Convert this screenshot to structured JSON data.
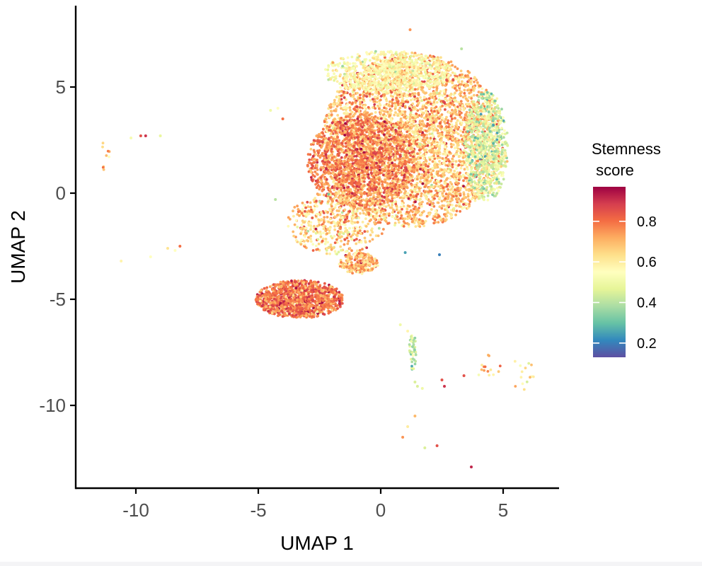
{
  "chart_data": {
    "type": "scatter",
    "title": "",
    "xlabel": "UMAP 1",
    "ylabel": "UMAP 2",
    "xlim": [
      -12.4,
      7.3
    ],
    "ylim": [
      -14,
      8.8
    ],
    "x_ticks": [
      -10,
      -5,
      0,
      5
    ],
    "y_ticks": [
      -10,
      -5,
      0,
      5
    ],
    "grid": false,
    "color_variable": "Stemness score",
    "legend": {
      "title_lines": [
        "Stemness",
        " score"
      ],
      "placement": "right",
      "ticks": [
        0.2,
        0.4,
        0.6,
        0.8
      ],
      "range": [
        0.13,
        0.97
      ],
      "colormap": [
        "#5e4fa2",
        "#3288bd",
        "#66c2a5",
        "#abdda4",
        "#e6f598",
        "#ffffbf",
        "#fee08b",
        "#fdae61",
        "#f46d43",
        "#d53e4f",
        "#9e0142"
      ]
    },
    "clusters": [
      {
        "name": "main-mass",
        "shape": "ellipse",
        "center": [
          1.3,
          2.5
        ],
        "radius": [
          3.7,
          4.1
        ],
        "count": 4200,
        "score_mean": 0.68,
        "score_sd": 0.09
      },
      {
        "name": "main-left-red",
        "shape": "ellipse",
        "center": [
          -0.8,
          1.5
        ],
        "radius": [
          2.2,
          2.2
        ],
        "count": 1400,
        "score_mean": 0.78,
        "score_sd": 0.07
      },
      {
        "name": "main-right-green",
        "shape": "ellipse",
        "center": [
          4.3,
          2.2
        ],
        "radius": [
          0.9,
          2.6
        ],
        "count": 700,
        "score_mean": 0.46,
        "score_sd": 0.08
      },
      {
        "name": "main-top-pale",
        "shape": "ellipse",
        "center": [
          0.3,
          5.7
        ],
        "radius": [
          2.6,
          1.0
        ],
        "count": 700,
        "score_mean": 0.55,
        "score_sd": 0.06
      },
      {
        "name": "main-lower-lobe",
        "shape": "ellipse",
        "center": [
          -1.8,
          -1.4
        ],
        "radius": [
          2.0,
          1.5
        ],
        "count": 500,
        "score_mean": 0.66,
        "score_sd": 0.1
      },
      {
        "name": "bridge",
        "shape": "ellipse",
        "center": [
          -0.9,
          -3.3
        ],
        "radius": [
          0.8,
          0.5
        ],
        "count": 220,
        "score_mean": 0.7,
        "score_sd": 0.08
      },
      {
        "name": "lower-cluster",
        "shape": "ellipse",
        "center": [
          -3.3,
          -5.0
        ],
        "radius": [
          1.8,
          0.9
        ],
        "count": 1200,
        "score_mean": 0.79,
        "score_sd": 0.07
      },
      {
        "name": "stream-green",
        "shape": "ellipse",
        "center": [
          1.3,
          -7.5
        ],
        "radius": [
          0.15,
          0.9
        ],
        "count": 45,
        "score_mean": 0.42,
        "score_sd": 0.06
      },
      {
        "name": "bottom-right-a",
        "shape": "ellipse",
        "center": [
          4.4,
          -8.2
        ],
        "radius": [
          0.5,
          0.6
        ],
        "count": 14,
        "score_mean": 0.67,
        "score_sd": 0.12
      },
      {
        "name": "bottom-right-b",
        "shape": "ellipse",
        "center": [
          5.8,
          -8.5
        ],
        "radius": [
          0.5,
          0.8
        ],
        "count": 14,
        "score_mean": 0.6,
        "score_sd": 0.1
      },
      {
        "name": "far-left",
        "shape": "ellipse",
        "center": [
          -11.2,
          1.8
        ],
        "radius": [
          0.2,
          0.9
        ],
        "count": 9,
        "score_mean": 0.64,
        "score_sd": 0.08
      }
    ],
    "isolated_points": [
      {
        "x": -9.8,
        "y": 2.7,
        "score": 0.85
      },
      {
        "x": -9.6,
        "y": 2.7,
        "score": 0.9
      },
      {
        "x": -10.2,
        "y": 2.6,
        "score": 0.52
      },
      {
        "x": -9.0,
        "y": 2.7,
        "score": 0.48
      },
      {
        "x": -8.7,
        "y": -2.6,
        "score": 0.62
      },
      {
        "x": -8.4,
        "y": -2.7,
        "score": 0.55
      },
      {
        "x": -8.2,
        "y": -2.5,
        "score": 0.8
      },
      {
        "x": -10.6,
        "y": -3.2,
        "score": 0.58
      },
      {
        "x": -9.4,
        "y": -3.0,
        "score": 0.55
      },
      {
        "x": -4.2,
        "y": 4.0,
        "score": 0.55
      },
      {
        "x": -4.0,
        "y": 3.5,
        "score": 0.8
      },
      {
        "x": -4.3,
        "y": -0.3,
        "score": 0.4
      },
      {
        "x": 0.8,
        "y": -6.2,
        "score": 0.5
      },
      {
        "x": 1.1,
        "y": -6.5,
        "score": 0.58
      },
      {
        "x": 1.4,
        "y": -8.9,
        "score": 0.45
      },
      {
        "x": 1.5,
        "y": -9.1,
        "score": 0.45
      },
      {
        "x": 1.7,
        "y": -9.2,
        "score": 0.5
      },
      {
        "x": 2.5,
        "y": -8.8,
        "score": 0.85
      },
      {
        "x": 2.6,
        "y": -9.1,
        "score": 0.9
      },
      {
        "x": 3.4,
        "y": -8.6,
        "score": 0.85
      },
      {
        "x": 1.4,
        "y": -10.5,
        "score": 0.7
      },
      {
        "x": 1.1,
        "y": -11.0,
        "score": 0.6
      },
      {
        "x": 0.9,
        "y": -11.5,
        "score": 0.75
      },
      {
        "x": 2.3,
        "y": -11.9,
        "score": 0.85
      },
      {
        "x": 1.8,
        "y": -12.0,
        "score": 0.45
      },
      {
        "x": 3.7,
        "y": -12.9,
        "score": 0.92
      },
      {
        "x": 2.4,
        "y": -2.9,
        "score": 0.2
      },
      {
        "x": 1.0,
        "y": -2.8,
        "score": 0.25
      },
      {
        "x": 3.3,
        "y": 6.8,
        "score": 0.4
      },
      {
        "x": 1.2,
        "y": 7.7,
        "score": 0.75
      },
      {
        "x": -4.5,
        "y": 3.9,
        "score": 0.5
      },
      {
        "x": 4.6,
        "y": 3.2,
        "score": 0.25
      }
    ]
  }
}
